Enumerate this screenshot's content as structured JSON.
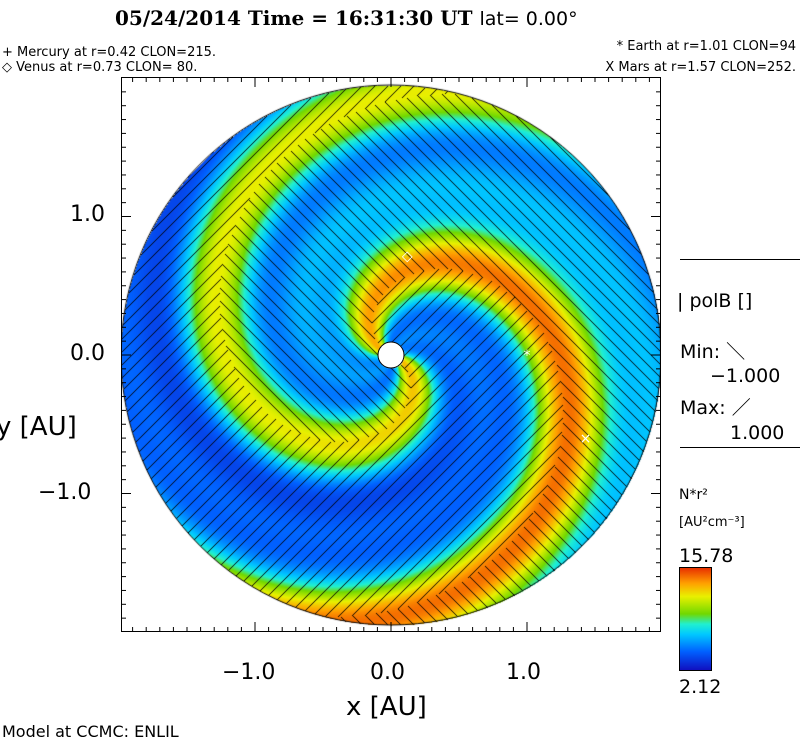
{
  "header": {
    "title": "05/24/2014 Time = 16:31:30 UT",
    "lat": "lat= 0.00°"
  },
  "planets": [
    {
      "label": "+ Mercury at r=0.42 CLON=215.",
      "name": "Mercury"
    },
    {
      "label": "◇ Venus at r=0.73 CLON= 80.",
      "name": "Venus"
    },
    {
      "label": "* Earth at  r=1.01 CLON=94",
      "name": "Earth"
    },
    {
      "label": "X Mars at r=1.57 CLON=252.",
      "name": "Mars"
    }
  ],
  "legend": {
    "polb": "| polB []",
    "min_label": "Min: ＼",
    "min_value": "−1.000",
    "max_label": "Max: ／",
    "max_value": "1.000",
    "cbar_title": "N*r²",
    "cbar_units": "[AU²cm⁻³]",
    "cbar_max": "15.78",
    "cbar_min": "2.12"
  },
  "footer": "Model at CCMC: ENLIL",
  "chart_data": {
    "type": "heatmap",
    "title": "05/24/2014 Time = 16:31:30 UT lat= 0.00°",
    "xlabel": "x [AU]",
    "ylabel": "y [AU]",
    "xlim": [
      -1.99,
      1.99
    ],
    "ylim": [
      -1.99,
      1.99
    ],
    "xticks": [
      "−1.0",
      "0.0",
      "1.0"
    ],
    "yticks": [
      "1.0",
      "0.0",
      "−1.0"
    ],
    "xtick_values": [
      -1,
      0,
      1
    ],
    "ytick_values": [
      1,
      0,
      -1
    ],
    "color_range": [
      2.12,
      15.78
    ],
    "colors": {
      "accent_low": "#1010c0",
      "accent_high": "#e83000"
    },
    "markers": [
      {
        "name": "Venus",
        "symbol": "◇",
        "x": 0.12,
        "y": 0.72
      },
      {
        "name": "Earth",
        "symbol": "*",
        "x": 1.0,
        "y": 0.0
      },
      {
        "name": "Mars",
        "symbol": "×",
        "x": 1.43,
        "y": -0.6
      }
    ]
  }
}
